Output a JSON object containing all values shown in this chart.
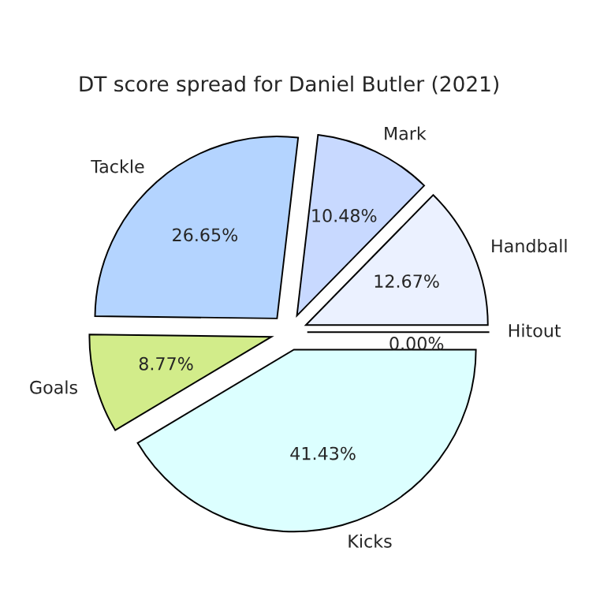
{
  "chart_data": {
    "type": "pie",
    "title": "DT score spread for Daniel Butler (2021)",
    "categories": [
      "Hitout",
      "Handball",
      "Mark",
      "Tackle",
      "Goals",
      "Kicks"
    ],
    "values": [
      0.0,
      12.67,
      10.48,
      26.65,
      8.77,
      41.43
    ],
    "value_labels": [
      "0.00%",
      "12.67%",
      "10.48%",
      "26.65%",
      "8.77%",
      "41.43%"
    ],
    "colors": [
      "#f5f8ff",
      "#ebf1ff",
      "#c8d9ff",
      "#b4d4ff",
      "#d2ec8a",
      "#dcffff"
    ]
  }
}
